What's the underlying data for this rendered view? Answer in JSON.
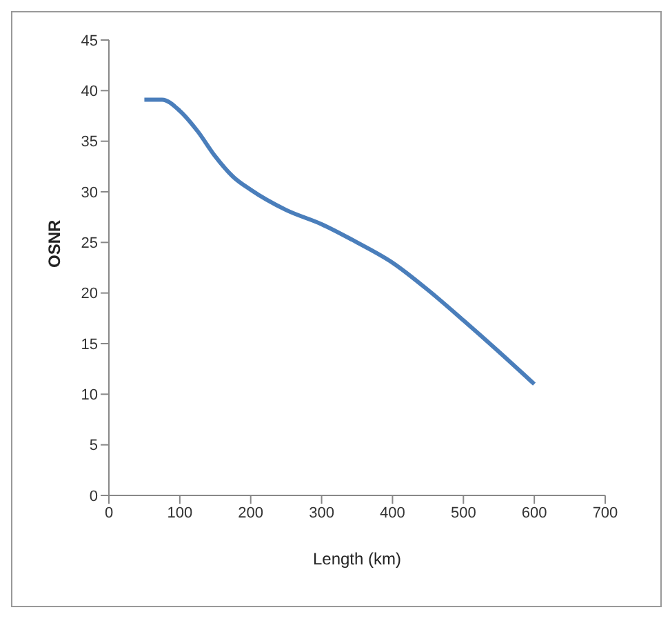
{
  "chart_data": {
    "type": "line",
    "xlabel": "Length (km)",
    "ylabel": "OSNR",
    "x": [
      50,
      75,
      100,
      125,
      150,
      175,
      200,
      250,
      300,
      350,
      400,
      450,
      500,
      550,
      600
    ],
    "series": [
      {
        "color": "#4a7ebb",
        "values": [
          39.1,
          39.1,
          38,
          36,
          33.5,
          31.5,
          30.2,
          28.2,
          26.8,
          25,
          23,
          20.3,
          17.3,
          14.2,
          11
        ]
      }
    ],
    "xlim": [
      0,
      700
    ],
    "xticks": [
      0,
      100,
      200,
      300,
      400,
      500,
      600,
      700
    ],
    "ylim": [
      0,
      45
    ],
    "yticks": [
      0,
      5,
      10,
      15,
      20,
      25,
      30,
      35,
      40,
      45
    ],
    "grid": false,
    "legend": false,
    "marker": "none",
    "line_style": "solid"
  }
}
